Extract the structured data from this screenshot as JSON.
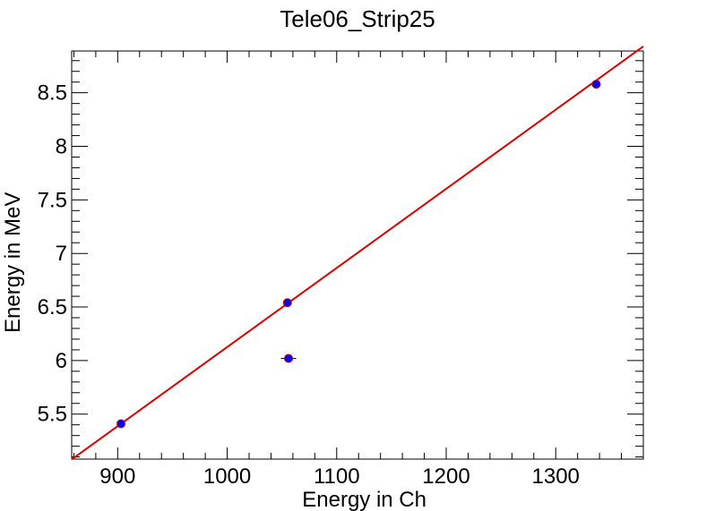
{
  "chart_data": {
    "type": "scatter",
    "title": "Tele06_Strip25",
    "xlabel": "Energy in Ch",
    "ylabel": "Energy in MeV",
    "xlim": [
      858,
      1380
    ],
    "ylim": [
      5.08,
      8.89
    ],
    "xticks": [
      900,
      1000,
      1100,
      1200,
      1300
    ],
    "xtick_labels": [
      "900",
      "1000",
      "1100",
      "1200",
      "1300"
    ],
    "yticks": [
      5.5,
      6,
      6.5,
      7,
      7.5,
      8,
      8.5
    ],
    "ytick_labels": [
      "5.5",
      "6",
      "6.5",
      "7",
      "7.5",
      "8",
      "8.5"
    ],
    "grid": false,
    "series": [
      {
        "kind": "points",
        "points": [
          {
            "x": 903,
            "y": 5.41,
            "xerr": 3
          },
          {
            "x": 1055,
            "y": 6.54,
            "xerr": 3
          },
          {
            "x": 1056,
            "y": 6.02,
            "xerr": 7
          },
          {
            "x": 1337,
            "y": 8.58,
            "xerr": 3
          }
        ],
        "color": "#0000ff",
        "edge_color": "#cc0000"
      },
      {
        "kind": "fit-line",
        "slope": 0.007388,
        "intercept": -1.262,
        "color": "#e00000"
      }
    ]
  }
}
